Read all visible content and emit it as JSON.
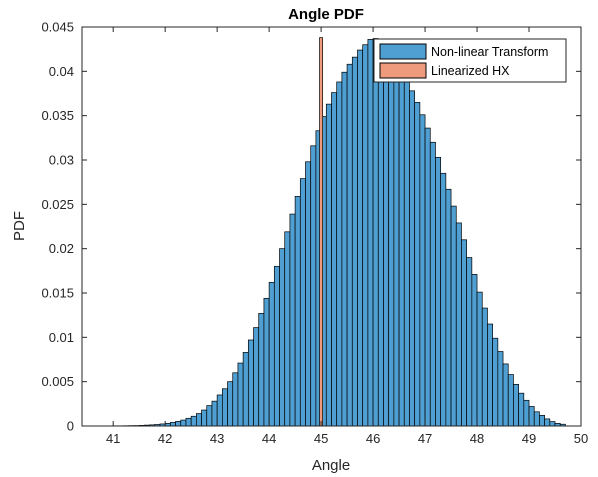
{
  "chart_data": {
    "type": "bar",
    "title": "Angle PDF",
    "xlabel": "Angle",
    "ylabel": "PDF",
    "xlim": [
      40.4,
      50
    ],
    "ylim": [
      0,
      0.045
    ],
    "xticks": [
      41,
      42,
      43,
      44,
      45,
      46,
      47,
      48,
      49,
      50
    ],
    "xtick_labels": [
      "41",
      "42",
      "43",
      "44",
      "45",
      "46",
      "47",
      "48",
      "49",
      "50"
    ],
    "yticks": [
      0,
      0.005,
      0.01,
      0.015,
      0.02,
      0.025,
      0.03,
      0.035,
      0.04,
      0.045
    ],
    "ytick_labels": [
      "0",
      "0.005",
      "0.01",
      "0.015",
      "0.02",
      "0.025",
      "0.03",
      "0.035",
      "0.04",
      "0.045"
    ],
    "grid": false,
    "legend_position": "top-right",
    "series": [
      {
        "name": "Non-linear Transform",
        "color": "#4f9fd2",
        "bin_width": 0.1,
        "bin_centers": [
          41.05,
          41.15,
          41.25,
          41.35,
          41.45,
          41.55,
          41.65,
          41.75,
          41.85,
          41.95,
          42.05,
          42.15,
          42.25,
          42.35,
          42.45,
          42.55,
          42.65,
          42.75,
          42.85,
          42.95,
          43.05,
          43.15,
          43.25,
          43.35,
          43.45,
          43.55,
          43.65,
          43.75,
          43.85,
          43.95,
          44.05,
          44.15,
          44.25,
          44.35,
          44.45,
          44.55,
          44.65,
          44.75,
          44.85,
          44.95,
          45.05,
          45.15,
          45.25,
          45.35,
          45.45,
          45.55,
          45.65,
          45.75,
          45.85,
          45.95,
          46.05,
          46.15,
          46.25,
          46.35,
          46.45,
          46.55,
          46.65,
          46.75,
          46.85,
          46.95,
          47.05,
          47.15,
          47.25,
          47.35,
          47.45,
          47.55,
          47.65,
          47.75,
          47.85,
          47.95,
          48.05,
          48.15,
          48.25,
          48.35,
          48.45,
          48.55,
          48.65,
          48.75,
          48.85,
          48.95,
          49.05,
          49.15,
          49.25,
          49.35,
          49.45,
          49.55,
          49.65
        ],
        "values": [
          2e-05,
          2e-05,
          3e-05,
          4e-05,
          5e-05,
          7e-05,
          0.0001,
          0.00013,
          0.00017,
          0.00023,
          0.0003,
          0.0004,
          0.00052,
          0.00067,
          0.00087,
          0.0011,
          0.0014,
          0.0018,
          0.0023,
          0.0028,
          0.0035,
          0.0042,
          0.005,
          0.006,
          0.0071,
          0.0083,
          0.0097,
          0.0111,
          0.0127,
          0.0144,
          0.0162,
          0.018,
          0.02,
          0.0219,
          0.0239,
          0.0259,
          0.0279,
          0.0298,
          0.0316,
          0.0333,
          0.0349,
          0.0363,
          0.0376,
          0.0388,
          0.0399,
          0.0408,
          0.0416,
          0.0424,
          0.043,
          0.0436,
          0.0437,
          0.0432,
          0.0426,
          0.0419,
          0.041,
          0.0401,
          0.039,
          0.0378,
          0.0365,
          0.0351,
          0.0336,
          0.032,
          0.0303,
          0.0285,
          0.0267,
          0.0248,
          0.0229,
          0.021,
          0.019,
          0.0171,
          0.0151,
          0.0133,
          0.0115,
          0.0099,
          0.0084,
          0.007,
          0.0058,
          0.0047,
          0.0037,
          0.0029,
          0.0022,
          0.0016,
          0.0012,
          0.0008,
          0.0005,
          0.0003,
          0.0002
        ]
      },
      {
        "name": "Linearized HX",
        "color": "#ee9a7c",
        "bin_width": 0.06,
        "bin_centers": [
          45.0
        ],
        "values": [
          0.0438
        ]
      }
    ]
  }
}
